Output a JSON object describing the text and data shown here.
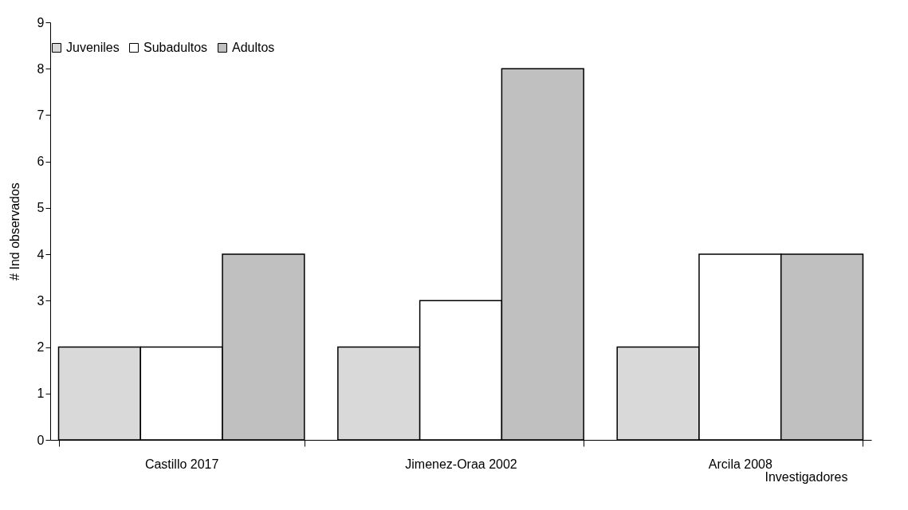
{
  "chart_data": {
    "type": "bar",
    "xlabel": "Investigadores",
    "ylabel": "# Ind observados",
    "categories": [
      "Castillo 2017",
      "Jimenez-Oraa 2002",
      "Arcila 2008"
    ],
    "series": [
      {
        "name": "Juveniles",
        "color": "#d9d9d9",
        "values": [
          2,
          2,
          2
        ]
      },
      {
        "name": "Subadultos",
        "color": "#ffffff",
        "values": [
          2,
          3,
          4
        ]
      },
      {
        "name": "Adultos",
        "color": "#c0c0c0",
        "values": [
          4,
          8,
          4
        ]
      }
    ],
    "ylim": [
      0,
      9
    ],
    "yticks": [
      0,
      1,
      2,
      3,
      4,
      5,
      6,
      7,
      8,
      9
    ],
    "legend": "top"
  }
}
